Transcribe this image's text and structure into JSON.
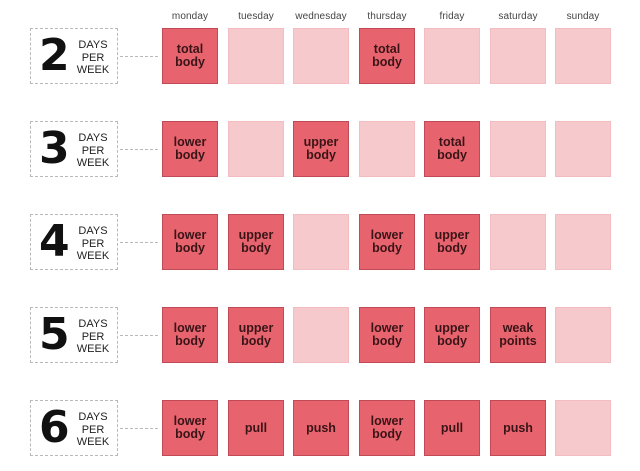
{
  "days": [
    "monday",
    "tuesday",
    "wednesday",
    "thursday",
    "friday",
    "saturday",
    "sunday"
  ],
  "rows": [
    {
      "number": "2",
      "line1": "DAYS",
      "line2": "PER",
      "line3": "WEEK",
      "cells": [
        {
          "text": "total\nbody",
          "active": true
        },
        {
          "text": "",
          "active": false
        },
        {
          "text": "",
          "active": false
        },
        {
          "text": "total\nbody",
          "active": true
        },
        {
          "text": "",
          "active": false
        },
        {
          "text": "",
          "active": false
        },
        {
          "text": "",
          "active": false
        }
      ]
    },
    {
      "number": "3",
      "line1": "DAYS",
      "line2": "PER",
      "line3": "WEEK",
      "cells": [
        {
          "text": "lower\nbody",
          "active": true
        },
        {
          "text": "",
          "active": false
        },
        {
          "text": "upper\nbody",
          "active": true
        },
        {
          "text": "",
          "active": false
        },
        {
          "text": "total\nbody",
          "active": true
        },
        {
          "text": "",
          "active": false
        },
        {
          "text": "",
          "active": false
        }
      ]
    },
    {
      "number": "4",
      "line1": "DAYS",
      "line2": "PER",
      "line3": "WEEK",
      "cells": [
        {
          "text": "lower\nbody",
          "active": true
        },
        {
          "text": "upper\nbody",
          "active": true
        },
        {
          "text": "",
          "active": false
        },
        {
          "text": "lower\nbody",
          "active": true
        },
        {
          "text": "upper\nbody",
          "active": true
        },
        {
          "text": "",
          "active": false
        },
        {
          "text": "",
          "active": false
        }
      ]
    },
    {
      "number": "5",
      "line1": "DAYS",
      "line2": "PER",
      "line3": "WEEK",
      "cells": [
        {
          "text": "lower\nbody",
          "active": true
        },
        {
          "text": "upper\nbody",
          "active": true
        },
        {
          "text": "",
          "active": false
        },
        {
          "text": "lower\nbody",
          "active": true
        },
        {
          "text": "upper\nbody",
          "active": true
        },
        {
          "text": "weak\npoints",
          "active": true
        },
        {
          "text": "",
          "active": false
        }
      ]
    },
    {
      "number": "6",
      "line1": "DAYS",
      "line2": "PER",
      "line3": "WEEK",
      "cells": [
        {
          "text": "lower\nbody",
          "active": true
        },
        {
          "text": "pull",
          "active": true
        },
        {
          "text": "push",
          "active": true
        },
        {
          "text": "lower\nbody",
          "active": true
        },
        {
          "text": "pull",
          "active": true
        },
        {
          "text": "push",
          "active": true
        },
        {
          "text": "",
          "active": false
        }
      ]
    }
  ],
  "colors": {
    "active": "#e7646f",
    "rest": "#f6c9cd",
    "dash": "#b9b9b9"
  }
}
